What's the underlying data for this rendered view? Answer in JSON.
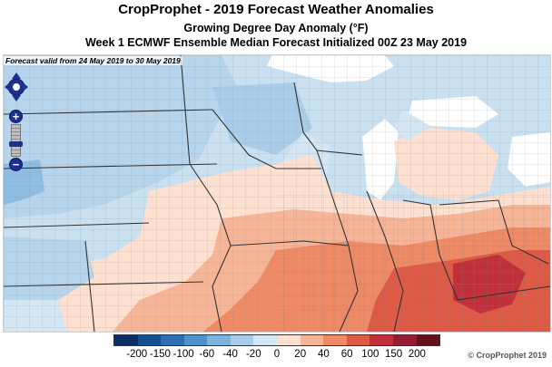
{
  "header": {
    "title": "CropProphet - 2019 Forecast Weather Anomalies",
    "subtitle_1": "Growing Degree Day Anomaly (°F)",
    "subtitle_2": "Week 1 ECMWF Ensemble Median Forecast Initialized 00Z 23 May 2019"
  },
  "map": {
    "valid_label": "Forecast valid from 24 May 2019 to 30 May 2019",
    "icons": [
      "pan-arrows-icon",
      "zoom-in-icon",
      "zoom-out-icon"
    ],
    "zoom_in_glyph": "+",
    "zoom_out_glyph": "−"
  },
  "legend": {
    "labels": [
      "-200",
      "-150",
      "-100",
      "-60",
      "-40",
      "-20",
      "0",
      "20",
      "40",
      "60",
      "100",
      "150",
      "200"
    ],
    "colors": [
      "#0b2f64",
      "#164f91",
      "#2c6fb3",
      "#4e93cb",
      "#7cb3de",
      "#a9cde9",
      "#d4e6f3",
      "#fde0d0",
      "#f7b598",
      "#ee8a66",
      "#dd5a47",
      "#c0303a",
      "#931d31",
      "#64101f"
    ]
  },
  "footer": {
    "copyright": "© CropProphet 2019"
  }
}
